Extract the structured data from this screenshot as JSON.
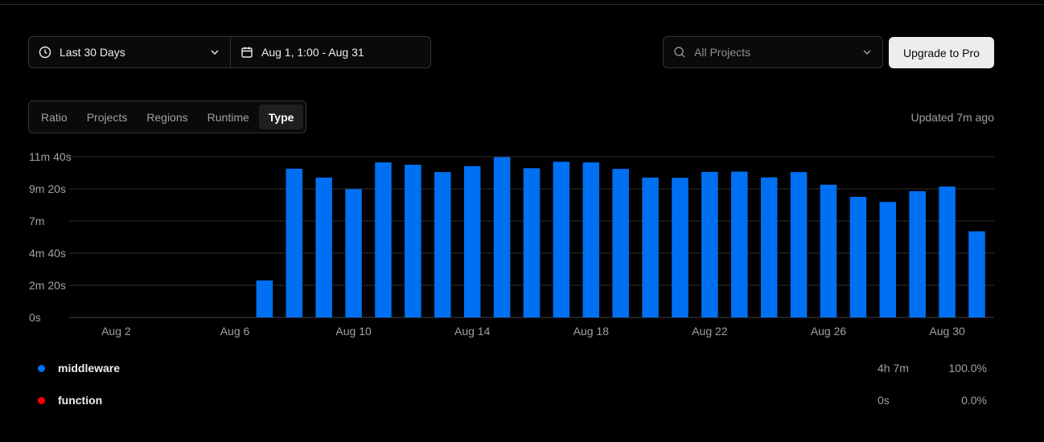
{
  "filters": {
    "range_label": "Last 30 Days",
    "date_label": "Aug 1, 1:00 - Aug 31",
    "project_placeholder": "All Projects",
    "upgrade_label": "Upgrade to Pro"
  },
  "tabs": [
    {
      "label": "Ratio"
    },
    {
      "label": "Projects"
    },
    {
      "label": "Regions"
    },
    {
      "label": "Runtime"
    },
    {
      "label": "Type"
    }
  ],
  "active_tab": "Type",
  "updated_text": "Updated 7m ago",
  "colors": {
    "middleware": "#0070f3",
    "function": "#ff0000",
    "grid": "#2e2e2e",
    "axis": "#444444"
  },
  "chart_data": {
    "type": "bar",
    "x": [
      "Aug 1",
      "Aug 2",
      "Aug 3",
      "Aug 4",
      "Aug 5",
      "Aug 6",
      "Aug 7",
      "Aug 8",
      "Aug 9",
      "Aug 10",
      "Aug 11",
      "Aug 12",
      "Aug 13",
      "Aug 14",
      "Aug 15",
      "Aug 16",
      "Aug 17",
      "Aug 18",
      "Aug 19",
      "Aug 20",
      "Aug 21",
      "Aug 22",
      "Aug 23",
      "Aug 24",
      "Aug 25",
      "Aug 26",
      "Aug 27",
      "Aug 28",
      "Aug 29",
      "Aug 30",
      "Aug 31"
    ],
    "x_ticks": [
      "Aug 2",
      "Aug 6",
      "Aug 10",
      "Aug 14",
      "Aug 18",
      "Aug 22",
      "Aug 26",
      "Aug 30"
    ],
    "y_ticks": [
      {
        "value": 0,
        "label": "0s"
      },
      {
        "value": 140,
        "label": "2m 20s"
      },
      {
        "value": 280,
        "label": "4m 40s"
      },
      {
        "value": 420,
        "label": "7m"
      },
      {
        "value": 560,
        "label": "9m 20s"
      },
      {
        "value": 700,
        "label": "11m 40s"
      }
    ],
    "ylim": [
      0,
      700
    ],
    "series": [
      {
        "name": "middleware",
        "values": [
          0,
          0,
          0,
          0,
          0,
          0,
          161,
          648,
          609,
          559,
          675,
          665,
          633,
          659,
          698,
          650,
          678,
          675,
          647,
          609,
          608,
          634,
          635,
          610,
          633,
          578,
          525,
          503,
          550,
          570,
          375
        ]
      },
      {
        "name": "function",
        "values": [
          0,
          0,
          0,
          0,
          0,
          0,
          0,
          0,
          0,
          0,
          0,
          0,
          0,
          0,
          0,
          0,
          0,
          0,
          0,
          0,
          0,
          0,
          0,
          0,
          0,
          0,
          0,
          0,
          0,
          0,
          0
        ]
      }
    ]
  },
  "legend": [
    {
      "name": "middleware",
      "total": "4h 7m",
      "percent": "100.0%"
    },
    {
      "name": "function",
      "total": "0s",
      "percent": "0.0%"
    }
  ]
}
